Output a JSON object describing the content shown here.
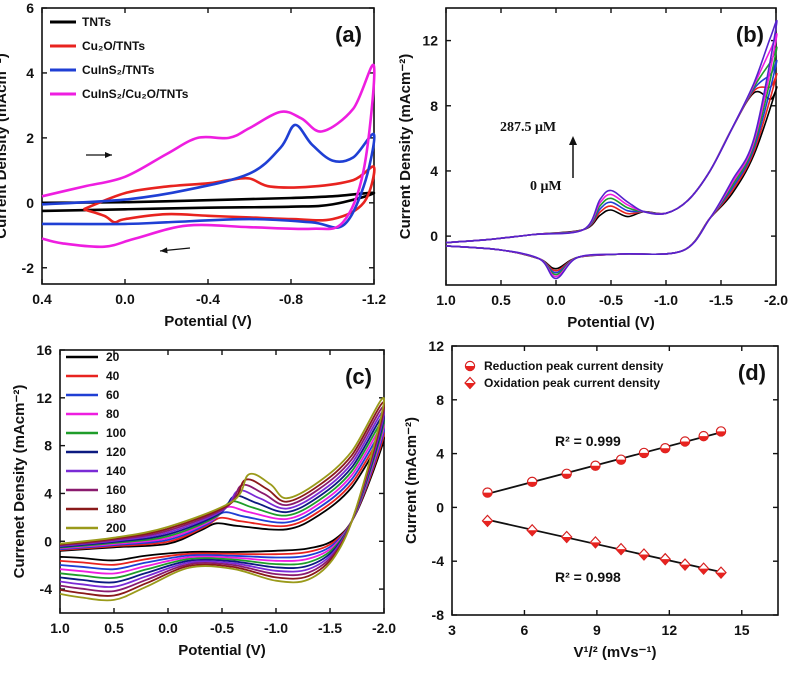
{
  "chart_data": [
    {
      "type": "line",
      "panel_label": "(a)",
      "xlabel": "Potential (V)",
      "ylabel": "Current Density (mAcm⁻²)",
      "xlim": [
        0.4,
        -1.2
      ],
      "ylim": [
        -2.5,
        6
      ],
      "xticks": [
        "0.4",
        "0.0",
        "-0.4",
        "-0.8",
        "-1.2"
      ],
      "yticks": [
        "-2",
        "0",
        "2",
        "4",
        "6"
      ],
      "legend_position": "top-left",
      "series": [
        {
          "name": "TNTs",
          "color": "#000000",
          "forward": [
            [
              0.4,
              0.0
            ],
            [
              0.0,
              0.02
            ],
            [
              -0.4,
              0.08
            ],
            [
              -0.8,
              0.15
            ],
            [
              -1.0,
              0.2
            ],
            [
              -1.2,
              0.3
            ]
          ],
          "reverse": [
            [
              -1.2,
              0.3
            ],
            [
              -1.0,
              -0.05
            ],
            [
              -0.8,
              -0.12
            ],
            [
              -0.4,
              -0.15
            ],
            [
              0.0,
              -0.2
            ],
            [
              0.4,
              -0.25
            ]
          ]
        },
        {
          "name": "Cu₂O/TNTs",
          "color": "#e8231f",
          "forward": [
            [
              0.2,
              -0.2
            ],
            [
              0.0,
              0.3
            ],
            [
              -0.2,
              0.5
            ],
            [
              -0.4,
              0.6
            ],
            [
              -0.5,
              0.7
            ],
            [
              -0.6,
              0.75
            ],
            [
              -0.7,
              0.5
            ],
            [
              -0.9,
              0.5
            ],
            [
              -1.1,
              0.7
            ],
            [
              -1.2,
              1.1
            ]
          ],
          "reverse": [
            [
              -1.2,
              1.1
            ],
            [
              -1.15,
              0.0
            ],
            [
              -1.0,
              -0.5
            ],
            [
              -0.8,
              -0.5
            ],
            [
              -0.6,
              -0.45
            ],
            [
              -0.4,
              -0.4
            ],
            [
              -0.2,
              -0.35
            ],
            [
              0.0,
              -0.5
            ],
            [
              0.05,
              -0.6
            ],
            [
              0.1,
              -0.4
            ],
            [
              0.2,
              -0.2
            ]
          ]
        },
        {
          "name": "CuInS₂/TNTs",
          "color": "#1f3fd4",
          "forward": [
            [
              0.4,
              -0.05
            ],
            [
              0.0,
              0.1
            ],
            [
              -0.3,
              0.4
            ],
            [
              -0.6,
              0.9
            ],
            [
              -0.75,
              1.7
            ],
            [
              -0.82,
              2.4
            ],
            [
              -0.9,
              1.8
            ],
            [
              -1.0,
              1.3
            ],
            [
              -1.1,
              1.4
            ],
            [
              -1.2,
              2.1
            ]
          ],
          "reverse": [
            [
              -1.2,
              2.1
            ],
            [
              -1.15,
              0.5
            ],
            [
              -1.05,
              -0.7
            ],
            [
              -0.9,
              -0.6
            ],
            [
              -0.6,
              -0.5
            ],
            [
              -0.2,
              -0.6
            ],
            [
              0.0,
              -0.65
            ],
            [
              0.4,
              -0.65
            ]
          ]
        },
        {
          "name": "CuInS₂/Cu₂O/TNTs",
          "color": "#ee1ee0",
          "forward": [
            [
              0.4,
              0.2
            ],
            [
              0.2,
              0.5
            ],
            [
              0.0,
              0.8
            ],
            [
              -0.2,
              1.5
            ],
            [
              -0.35,
              2.0
            ],
            [
              -0.5,
              2.0
            ],
            [
              -0.6,
              2.3
            ],
            [
              -0.75,
              2.8
            ],
            [
              -0.85,
              2.6
            ],
            [
              -0.95,
              2.2
            ],
            [
              -1.1,
              2.9
            ],
            [
              -1.2,
              4.2
            ]
          ],
          "reverse": [
            [
              -1.2,
              4.2
            ],
            [
              -1.15,
              1.0
            ],
            [
              -1.05,
              -0.6
            ],
            [
              -0.9,
              -0.8
            ],
            [
              -0.6,
              -0.75
            ],
            [
              -0.3,
              -0.7
            ],
            [
              -0.05,
              -1.1
            ],
            [
              0.1,
              -1.35
            ],
            [
              0.3,
              -1.25
            ],
            [
              0.4,
              -1.1
            ]
          ]
        }
      ],
      "annotations": [
        "→",
        "←"
      ]
    },
    {
      "type": "line",
      "panel_label": "(b)",
      "xlabel": "Potential (V)",
      "ylabel": "Current Density (mAcm⁻²)",
      "xlim": [
        1.0,
        -2.0
      ],
      "ylim": [
        -3,
        14
      ],
      "xticks": [
        "1.0",
        "0.5",
        "0.0",
        "-0.5",
        "-1.0",
        "-1.5",
        "-2.0"
      ],
      "yticks": [
        "0",
        "4",
        "8",
        "12"
      ],
      "annotations": [
        "287.5 μM",
        "0 μM"
      ],
      "colors": [
        "#000000",
        "#e8231f",
        "#1f3fd4",
        "#1f9d2a",
        "#ee1ee0",
        "#5522cc"
      ]
    },
    {
      "type": "line",
      "panel_label": "(c)",
      "xlabel": "Potential (V)",
      "ylabel": "Currenet Density (mAcm⁻²)",
      "xlim": [
        1.0,
        -2.0
      ],
      "ylim": [
        -6,
        16
      ],
      "xticks": [
        "1.0",
        "0.5",
        "0.0",
        "-0.5",
        "-1.0",
        "-1.5",
        "-2.0"
      ],
      "yticks": [
        "-4",
        "0",
        "4",
        "8",
        "12",
        "16"
      ],
      "legend_position": "top-left",
      "series_names": [
        "20",
        "40",
        "60",
        "80",
        "100",
        "120",
        "140",
        "160",
        "180",
        "200"
      ],
      "colors": [
        "#000000",
        "#e8231f",
        "#1f3fd4",
        "#ee1ee0",
        "#1f9d2a",
        "#0c1a80",
        "#7a2bd6",
        "#8a1a6e",
        "#8a1a1a",
        "#9a9a1a"
      ]
    },
    {
      "type": "scatter",
      "panel_label": "(d)",
      "xlabel": "V¹/² (mVs⁻¹)",
      "ylabel": "Current (mAcm⁻²)",
      "xlim": [
        3,
        16.5
      ],
      "ylim": [
        -8,
        12
      ],
      "xticks": [
        "3",
        "6",
        "9",
        "12",
        "15"
      ],
      "yticks": [
        "-8",
        "-4",
        "0",
        "4",
        "8",
        "12"
      ],
      "legend_position": "top-right",
      "x": [
        4.47,
        6.32,
        7.75,
        8.94,
        10.0,
        10.95,
        11.83,
        12.65,
        13.42,
        14.14
      ],
      "series": [
        {
          "name": "Reduction peak current density",
          "marker": "circle",
          "values": [
            1.1,
            1.9,
            2.5,
            3.1,
            3.55,
            4.05,
            4.4,
            4.9,
            5.3,
            5.65
          ],
          "r2": "R² = 0.999"
        },
        {
          "name": "Oxidation peak current density",
          "marker": "diamond",
          "values": [
            -1.0,
            -1.7,
            -2.2,
            -2.6,
            -3.1,
            -3.5,
            -3.85,
            -4.25,
            -4.55,
            -4.85
          ],
          "r2": "R² = 0.998"
        }
      ]
    }
  ]
}
